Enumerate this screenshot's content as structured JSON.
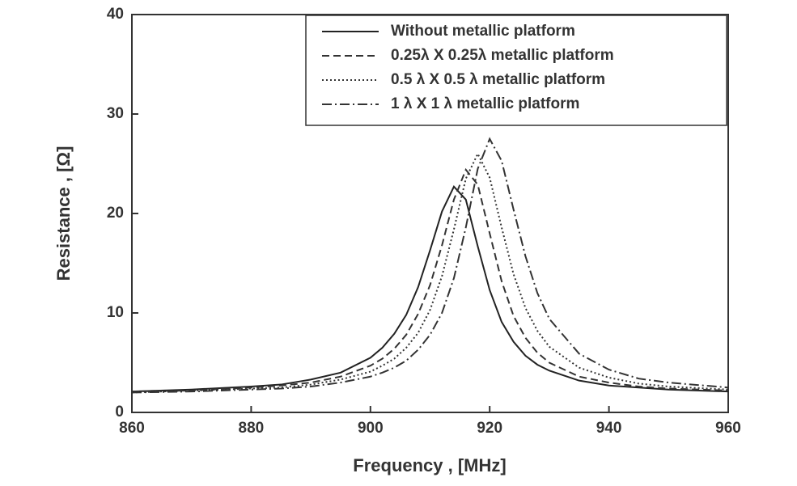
{
  "chart_data": {
    "type": "line",
    "x_label": "Frequency , [MHz]",
    "y_label": "Resistance , [Ω]",
    "x": [
      860,
      870,
      880,
      885,
      890,
      895,
      900,
      902,
      904,
      906,
      908,
      910,
      912,
      914,
      916,
      918,
      920,
      922,
      924,
      926,
      928,
      930,
      935,
      940,
      945,
      950,
      960
    ],
    "series": [
      {
        "name": "Without metallic platform",
        "color": "#222222",
        "dash": "none",
        "values": [
          2.1,
          2.3,
          2.6,
          2.8,
          3.3,
          4.0,
          5.5,
          6.5,
          7.9,
          9.8,
          12.6,
          16.3,
          20.2,
          22.7,
          21.4,
          16.7,
          12.3,
          9.1,
          7.1,
          5.7,
          4.8,
          4.2,
          3.2,
          2.7,
          2.5,
          2.3,
          2.1
        ]
      },
      {
        "name": "0.25λ X 0.25λ metallic platform",
        "color": "#333333",
        "dash": "9 5",
        "values": [
          2.1,
          2.2,
          2.5,
          2.7,
          3.0,
          3.6,
          4.7,
          5.4,
          6.4,
          7.8,
          9.9,
          12.8,
          16.8,
          21.4,
          24.4,
          22.9,
          18.0,
          13.2,
          9.7,
          7.5,
          6.0,
          5.0,
          3.6,
          3.0,
          2.6,
          2.4,
          2.2
        ]
      },
      {
        "name": "0.5 λ X 0.5 λ metallic platform",
        "color": "#333333",
        "dash": "2 3",
        "values": [
          2.0,
          2.2,
          2.4,
          2.5,
          2.8,
          3.3,
          4.1,
          4.7,
          5.4,
          6.5,
          8.0,
          10.3,
          13.7,
          18.4,
          23.5,
          26.0,
          23.6,
          18.6,
          13.9,
          10.5,
          8.2,
          6.6,
          4.5,
          3.5,
          2.9,
          2.6,
          2.3
        ]
      },
      {
        "name": "1 λ X 1 λ metallic platform",
        "color": "#333333",
        "dash": "12 4 2 4",
        "values": [
          2.0,
          2.1,
          2.3,
          2.4,
          2.6,
          3.0,
          3.6,
          4.0,
          4.5,
          5.2,
          6.3,
          7.8,
          10.0,
          13.5,
          18.6,
          24.5,
          27.5,
          25.3,
          20.4,
          15.7,
          12.0,
          9.4,
          5.9,
          4.3,
          3.4,
          3.0,
          2.5
        ]
      }
    ],
    "xlim": [
      860,
      960
    ],
    "ylim": [
      0,
      40
    ],
    "xticks": [
      860,
      880,
      900,
      920,
      940,
      960
    ],
    "yticks": [
      0,
      10,
      20,
      30,
      40
    ],
    "grid": false,
    "legend": "upper right"
  }
}
